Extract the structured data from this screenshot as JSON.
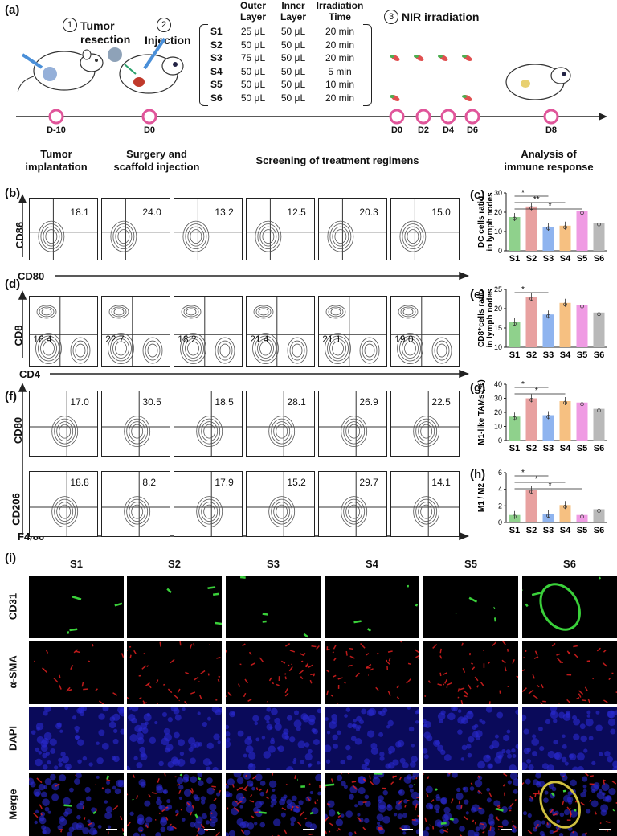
{
  "panel_a": {
    "label": "(a)",
    "step1": {
      "num": "1",
      "title": "Tumor\nresection"
    },
    "step2": {
      "num": "2",
      "title": "Injection"
    },
    "step3": {
      "num": "3",
      "title": "NIR irradiation"
    },
    "table_headers": [
      "",
      "Outer\nLayer",
      "Inner\nLayer",
      "Irradiation\nTime"
    ],
    "table_rows": [
      [
        "S1",
        "25 μL",
        "50 μL",
        "20 min"
      ],
      [
        "S2",
        "50 μL",
        "50 μL",
        "20 min"
      ],
      [
        "S3",
        "75 μL",
        "50 μL",
        "20 min"
      ],
      [
        "S4",
        "50 μL",
        "50 μL",
        "5 min"
      ],
      [
        "S5",
        "50 μL",
        "50 μL",
        "10 min"
      ],
      [
        "S6",
        "50 μL",
        "50 μL",
        "20 min"
      ]
    ],
    "timeline_points": [
      "D-10",
      "D0",
      "D0",
      "D2",
      "D4",
      "D6",
      "D8"
    ],
    "stage_labels": [
      "Tumor\nimplantation",
      "Surgery and\nscaffold injection",
      "Screening of treatment regimens",
      "Analysis of\nimmune response"
    ]
  },
  "panel_b": {
    "label": "(b)",
    "y_axis": "CD86",
    "x_axis": "CD80",
    "values": [
      "18.1",
      "24.0",
      "13.2",
      "12.5",
      "20.3",
      "15.0"
    ]
  },
  "panel_d": {
    "label": "(d)",
    "y_axis": "CD8",
    "x_axis": "CD4",
    "values": [
      "16.4",
      "22.7",
      "18.2",
      "21.4",
      "21.1",
      "19.0"
    ]
  },
  "panel_f": {
    "label": "(f)",
    "y_axis_top": "CD80",
    "y_axis_bottom": "CD206",
    "x_axis": "F4/80",
    "values_top": [
      "17.0",
      "30.5",
      "18.5",
      "28.1",
      "26.9",
      "22.5"
    ],
    "values_bottom": [
      "18.8",
      "8.2",
      "17.9",
      "15.2",
      "29.7",
      "14.1"
    ]
  },
  "bar_colors": [
    "#8fd18c",
    "#e8a1a0",
    "#8fb4ef",
    "#f6c081",
    "#ef9be3",
    "#b9b9b9"
  ],
  "chart_data": [
    {
      "id": "c",
      "label": "(c)",
      "type": "bar",
      "categories": [
        "S1",
        "S2",
        "S3",
        "S4",
        "S5",
        "S6"
      ],
      "values": [
        17.5,
        23.0,
        12.5,
        13.0,
        20.5,
        14.5
      ],
      "ylabel": "DC cells ratio\nin lymph nodes",
      "ylim": [
        0,
        30
      ],
      "yticks": [
        "0",
        "10",
        "20",
        "30"
      ],
      "significance": [
        "*",
        "**",
        "*"
      ]
    },
    {
      "id": "e",
      "label": "(e)",
      "type": "bar",
      "categories": [
        "S1",
        "S2",
        "S3",
        "S4",
        "S5",
        "S6"
      ],
      "values": [
        16.5,
        23.0,
        18.5,
        21.5,
        21.0,
        19.0
      ],
      "ylabel": "CD8⁺cells ratio\nin lymph nodes",
      "ylim": [
        10,
        25
      ],
      "yticks": [
        "10",
        "15",
        "20",
        "25"
      ],
      "significance": [
        "*"
      ]
    },
    {
      "id": "g",
      "label": "(g)",
      "type": "bar",
      "categories": [
        "S1",
        "S2",
        "S3",
        "S4",
        "S5",
        "S6"
      ],
      "values": [
        17.0,
        30.0,
        18.0,
        28.0,
        27.0,
        22.5
      ],
      "ylabel": "M1-like TAMs (%)",
      "ylim": [
        0,
        40
      ],
      "yticks": [
        "0",
        "10",
        "20",
        "30",
        "40"
      ],
      "significance": [
        "*",
        "*"
      ]
    },
    {
      "id": "h",
      "label": "(h)",
      "type": "bar",
      "categories": [
        "S1",
        "S2",
        "S3",
        "S4",
        "S5",
        "S6"
      ],
      "values": [
        0.9,
        3.9,
        1.0,
        2.1,
        0.9,
        1.6
      ],
      "ylabel": "M1 / M2",
      "ylim": [
        0,
        6
      ],
      "yticks": [
        "0",
        "2",
        "4",
        "6"
      ],
      "significance": [
        "*",
        "*",
        "*"
      ]
    }
  ],
  "panel_i": {
    "label": "(i)",
    "columns": [
      "S1",
      "S2",
      "S3",
      "S4",
      "S5",
      "S6"
    ],
    "rows": [
      "CD31",
      "α-SMA",
      "DAPI",
      "Merge"
    ]
  }
}
